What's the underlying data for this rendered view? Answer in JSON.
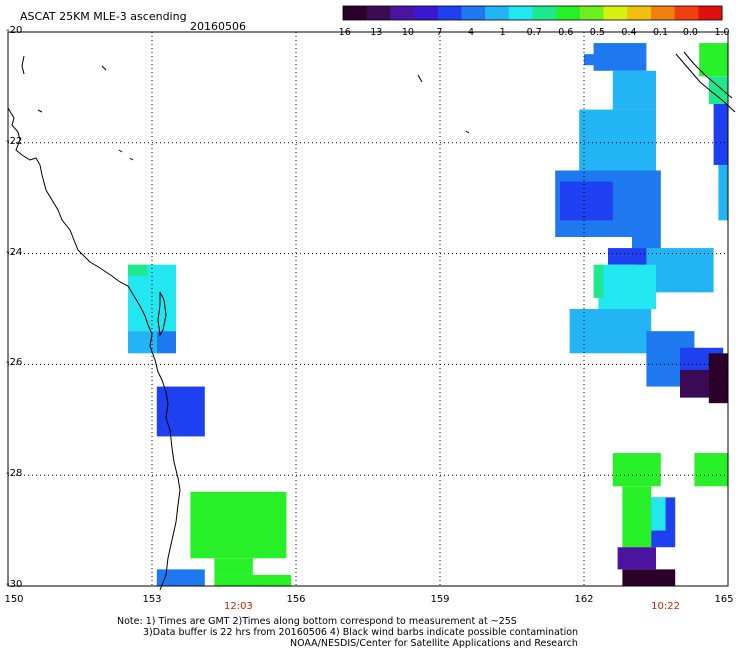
{
  "header": {
    "title": "ASCAT 25KM MLE-3 ascending",
    "date": "20160506"
  },
  "colorbar": {
    "tick_labels": [
      "-16",
      "-13",
      "-10",
      "-7",
      "-4",
      "-1",
      "-0.7",
      "-0.6",
      "-0.5",
      "-0.4",
      "-0.1",
      "0.0",
      "1.0"
    ],
    "colors": [
      "#2a002a",
      "#3a0a55",
      "#4a14a0",
      "#3a18d0",
      "#1e40f0",
      "#1e78f0",
      "#22b4f4",
      "#22e6f0",
      "#1ee88c",
      "#28f028",
      "#6ef020",
      "#d8f010",
      "#f0c010",
      "#f08010",
      "#f04010",
      "#e01010"
    ]
  },
  "axes": {
    "y_labels": [
      "-20",
      "-22",
      "-24",
      "-26",
      "-28",
      "-30"
    ],
    "x_labels": [
      "150",
      "153",
      "156",
      "159",
      "162",
      "165"
    ],
    "lat_range": [
      -30,
      -20
    ],
    "lon_range": [
      150,
      165
    ]
  },
  "time_labels": [
    {
      "text": "12:03",
      "lon": 154.8
    },
    {
      "text": "10:22",
      "lon": 163.7
    }
  ],
  "footer": {
    "line1": "Note: 1) Times are GMT 2)Times along bottom correspond to measurement at ~25S",
    "line2": "3)Data buffer is 22 hrs from 20160506 4) Black wind barbs indicate possible contamination",
    "line3": "NOAA/NESDIS/Center for Satellite Applications and Research"
  },
  "mle_cells": [
    {
      "lon0": 152.5,
      "lon1": 153.5,
      "lat0": -24.2,
      "lat1": -25.4,
      "color": "#22e6f0"
    },
    {
      "lon0": 152.5,
      "lon1": 152.9,
      "lat0": -24.2,
      "lat1": -24.4,
      "color": "#1ee88c"
    },
    {
      "lon0": 152.5,
      "lon1": 153.1,
      "lat0": -25.4,
      "lat1": -25.8,
      "color": "#22b4f4"
    },
    {
      "lon0": 153.1,
      "lon1": 153.5,
      "lat0": -25.4,
      "lat1": -25.8,
      "color": "#1e78f0"
    },
    {
      "lon0": 153.1,
      "lon1": 154.1,
      "lat0": -26.4,
      "lat1": -27.3,
      "color": "#1e40f0"
    },
    {
      "lon0": 153.8,
      "lon1": 155.8,
      "lat0": -28.3,
      "lat1": -29.5,
      "color": "#28f028"
    },
    {
      "lon0": 154.3,
      "lon1": 155.1,
      "lat0": -29.5,
      "lat1": -29.8,
      "color": "#28f028"
    },
    {
      "lon0": 153.1,
      "lon1": 154.1,
      "lat0": -29.7,
      "lat1": -30.0,
      "color": "#1e78f0"
    },
    {
      "lon0": 154.3,
      "lon1": 155.9,
      "lat0": -29.8,
      "lat1": -30.0,
      "color": "#28f028"
    },
    {
      "lon0": 162.0,
      "lon1": 162.6,
      "lat0": -20.4,
      "lat1": -20.6,
      "color": "#1e78f0"
    },
    {
      "lon0": 162.2,
      "lon1": 163.3,
      "lat0": -20.2,
      "lat1": -20.7,
      "color": "#1e78f0"
    },
    {
      "lon0": 162.6,
      "lon1": 163.5,
      "lat0": -20.7,
      "lat1": -21.4,
      "color": "#22b4f4"
    },
    {
      "lon0": 161.9,
      "lon1": 163.5,
      "lat0": -21.4,
      "lat1": -22.5,
      "color": "#22b4f4"
    },
    {
      "lon0": 161.4,
      "lon1": 163.6,
      "lat0": -22.5,
      "lat1": -23.7,
      "color": "#1e78f0"
    },
    {
      "lon0": 161.5,
      "lon1": 162.6,
      "lat0": -22.7,
      "lat1": -23.4,
      "color": "#1e40f0"
    },
    {
      "lon0": 163.0,
      "lon1": 163.6,
      "lat0": -23.7,
      "lat1": -24.0,
      "color": "#1e78f0"
    },
    {
      "lon0": 163.1,
      "lon1": 164.7,
      "lat0": -23.9,
      "lat1": -24.7,
      "color": "#22b4f4"
    },
    {
      "lon0": 162.5,
      "lon1": 163.3,
      "lat0": -23.9,
      "lat1": -24.2,
      "color": "#1e40f0"
    },
    {
      "lon0": 162.3,
      "lon1": 163.5,
      "lat0": -24.2,
      "lat1": -25.0,
      "color": "#22e6f0"
    },
    {
      "lon0": 162.2,
      "lon1": 162.4,
      "lat0": -24.2,
      "lat1": -24.8,
      "color": "#1ee88c"
    },
    {
      "lon0": 161.7,
      "lon1": 163.4,
      "lat0": -25.0,
      "lat1": -25.8,
      "color": "#22b4f4"
    },
    {
      "lon0": 163.3,
      "lon1": 164.3,
      "lat0": -25.4,
      "lat1": -26.4,
      "color": "#1e78f0"
    },
    {
      "lon0": 164.0,
      "lon1": 164.9,
      "lat0": -25.7,
      "lat1": -26.4,
      "color": "#1e40f0"
    },
    {
      "lon0": 164.0,
      "lon1": 164.9,
      "lat0": -26.1,
      "lat1": -26.6,
      "color": "#3a0a55"
    },
    {
      "lon0": 164.6,
      "lon1": 165.0,
      "lat0": -25.8,
      "lat1": -26.7,
      "color": "#2a002a"
    },
    {
      "lon0": 162.6,
      "lon1": 163.6,
      "lat0": -27.6,
      "lat1": -28.2,
      "color": "#28f028"
    },
    {
      "lon0": 162.8,
      "lon1": 163.4,
      "lat0": -28.2,
      "lat1": -29.3,
      "color": "#28f028"
    },
    {
      "lon0": 164.3,
      "lon1": 165.0,
      "lat0": -27.6,
      "lat1": -28.2,
      "color": "#28f028"
    },
    {
      "lon0": 163.4,
      "lon1": 163.9,
      "lat0": -28.4,
      "lat1": -29.3,
      "color": "#1e40f0"
    },
    {
      "lon0": 163.4,
      "lon1": 163.7,
      "lat0": -28.4,
      "lat1": -29.0,
      "color": "#22e6f0"
    },
    {
      "lon0": 162.7,
      "lon1": 163.5,
      "lat0": -29.3,
      "lat1": -29.7,
      "color": "#4a14a0"
    },
    {
      "lon0": 162.8,
      "lon1": 163.9,
      "lat0": -29.7,
      "lat1": -30.0,
      "color": "#2a002a"
    },
    {
      "lon0": 164.4,
      "lon1": 165.0,
      "lat0": -20.2,
      "lat1": -20.8,
      "color": "#28f028"
    },
    {
      "lon0": 164.6,
      "lon1": 165.0,
      "lat0": -20.8,
      "lat1": -21.3,
      "color": "#1ee88c"
    },
    {
      "lon0": 164.7,
      "lon1": 165.0,
      "lat0": -21.3,
      "lat1": -22.4,
      "color": "#1e40f0"
    },
    {
      "lon0": 164.8,
      "lon1": 165.0,
      "lat0": -22.4,
      "lat1": -23.4,
      "color": "#22b4f4"
    }
  ]
}
